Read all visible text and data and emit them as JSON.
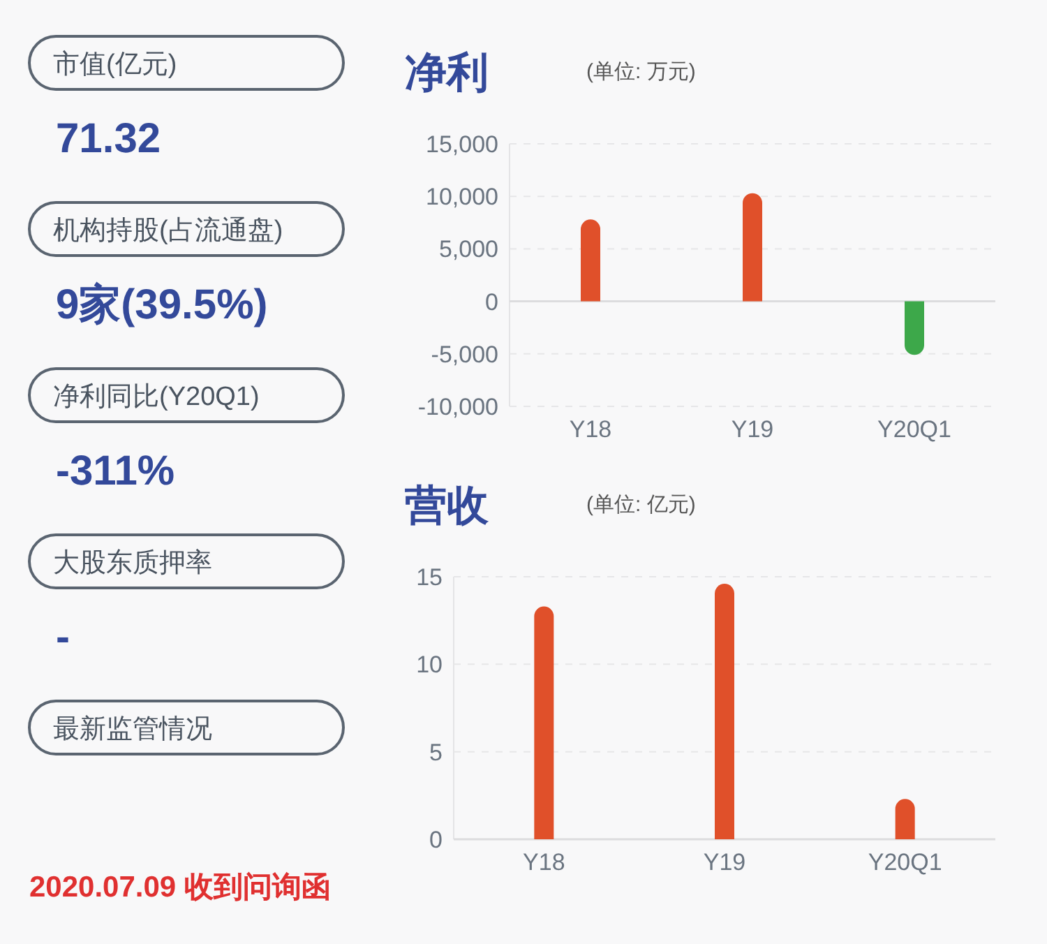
{
  "chart_data": [
    {
      "type": "other",
      "annotations": [
        "市值(亿元)",
        "71.32",
        "机构持股(占流通盘)",
        "9家(39.5%)",
        "净利同比(Y20Q1)",
        "-311%",
        "大股东质押率",
        "-",
        "最新监管情况",
        "2020.07.09 收到问询函"
      ]
    },
    {
      "type": "bar",
      "title": "净利",
      "subtitle": "(单位: 万元)",
      "categories": [
        "Y18",
        "Y19",
        "Y20Q1"
      ],
      "values": [
        7800,
        10300,
        -5100
      ],
      "colors": [
        "#e0502a",
        "#e0502a",
        "#3da84a"
      ],
      "ylim": [
        -10000,
        15000
      ],
      "yticks": [
        {
          "value": -10000,
          "label": "-10,000"
        },
        {
          "value": -5000,
          "label": "-5,000"
        },
        0,
        {
          "value": 5000,
          "label": "5,000"
        },
        {
          "value": 10000,
          "label": "10,000"
        },
        {
          "value": 15000,
          "label": "15,000"
        }
      ],
      "grid": "y"
    },
    {
      "type": "bar",
      "title": "营收",
      "subtitle": "(单位: 亿元)",
      "categories": [
        "Y18",
        "Y19",
        "Y20Q1"
      ],
      "values": [
        13.3,
        14.6,
        2.3
      ],
      "colors": [
        "#e0502a",
        "#e0502a",
        "#e0502a"
      ],
      "ylim": [
        0,
        15
      ],
      "yticks": [
        0,
        5,
        10,
        15
      ],
      "grid": "y"
    }
  ]
}
